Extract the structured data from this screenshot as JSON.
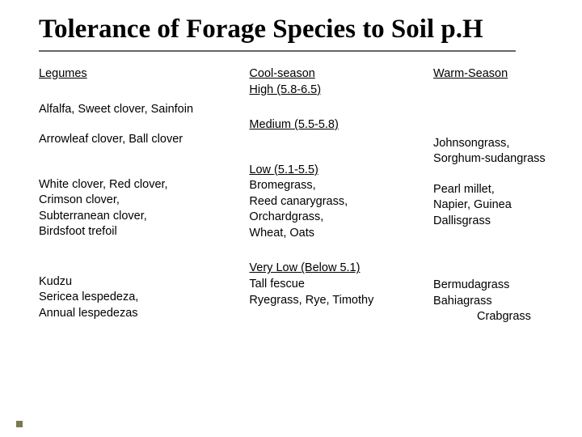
{
  "title": "Tolerance of Forage Species to Soil p.H",
  "headers": {
    "col1": "Legumes",
    "col2a": "Cool-season",
    "col2b": "High (5.8-6.5)",
    "col3": "Warm-Season"
  },
  "row1": {
    "c1": "Alfalfa, Sweet clover, Sainfoin"
  },
  "sect_med": "Medium (5.5-5.8)",
  "row2": {
    "c1": "Arrowleaf clover,  Ball clover",
    "c3a": "Johnsongrass,",
    "c3b": "Sorghum-sudangrass"
  },
  "sect_low": "Low  (5.1-5.5)",
  "row3": {
    "c1a": "White clover, Red clover,",
    "c1b": "Crimson clover,",
    "c1c": "Subterranean clover,",
    "c1d": "Birdsfoot trefoil",
    "c2a": "Bromegrass,",
    "c2b": "Reed canarygrass,",
    "c2c": "Orchardgrass,",
    "c2d": "Wheat, Oats",
    "c3a": "Pearl millet,",
    "c3b": "Napier, Guinea",
    "c3c": "Dallisgrass"
  },
  "sect_vlow": "Very Low (Below 5.1)",
  "row4": {
    "c1a": "Kudzu",
    "c1b": "Sericea lespedeza,",
    "c1c": "Annual lespedezas",
    "c2a": "Tall fescue",
    "c2b": "Ryegrass, Rye, Timothy",
    "c3a": "Bermudagrass",
    "c3b": "Bahiagrass",
    "c3c": "Crabgrass"
  }
}
